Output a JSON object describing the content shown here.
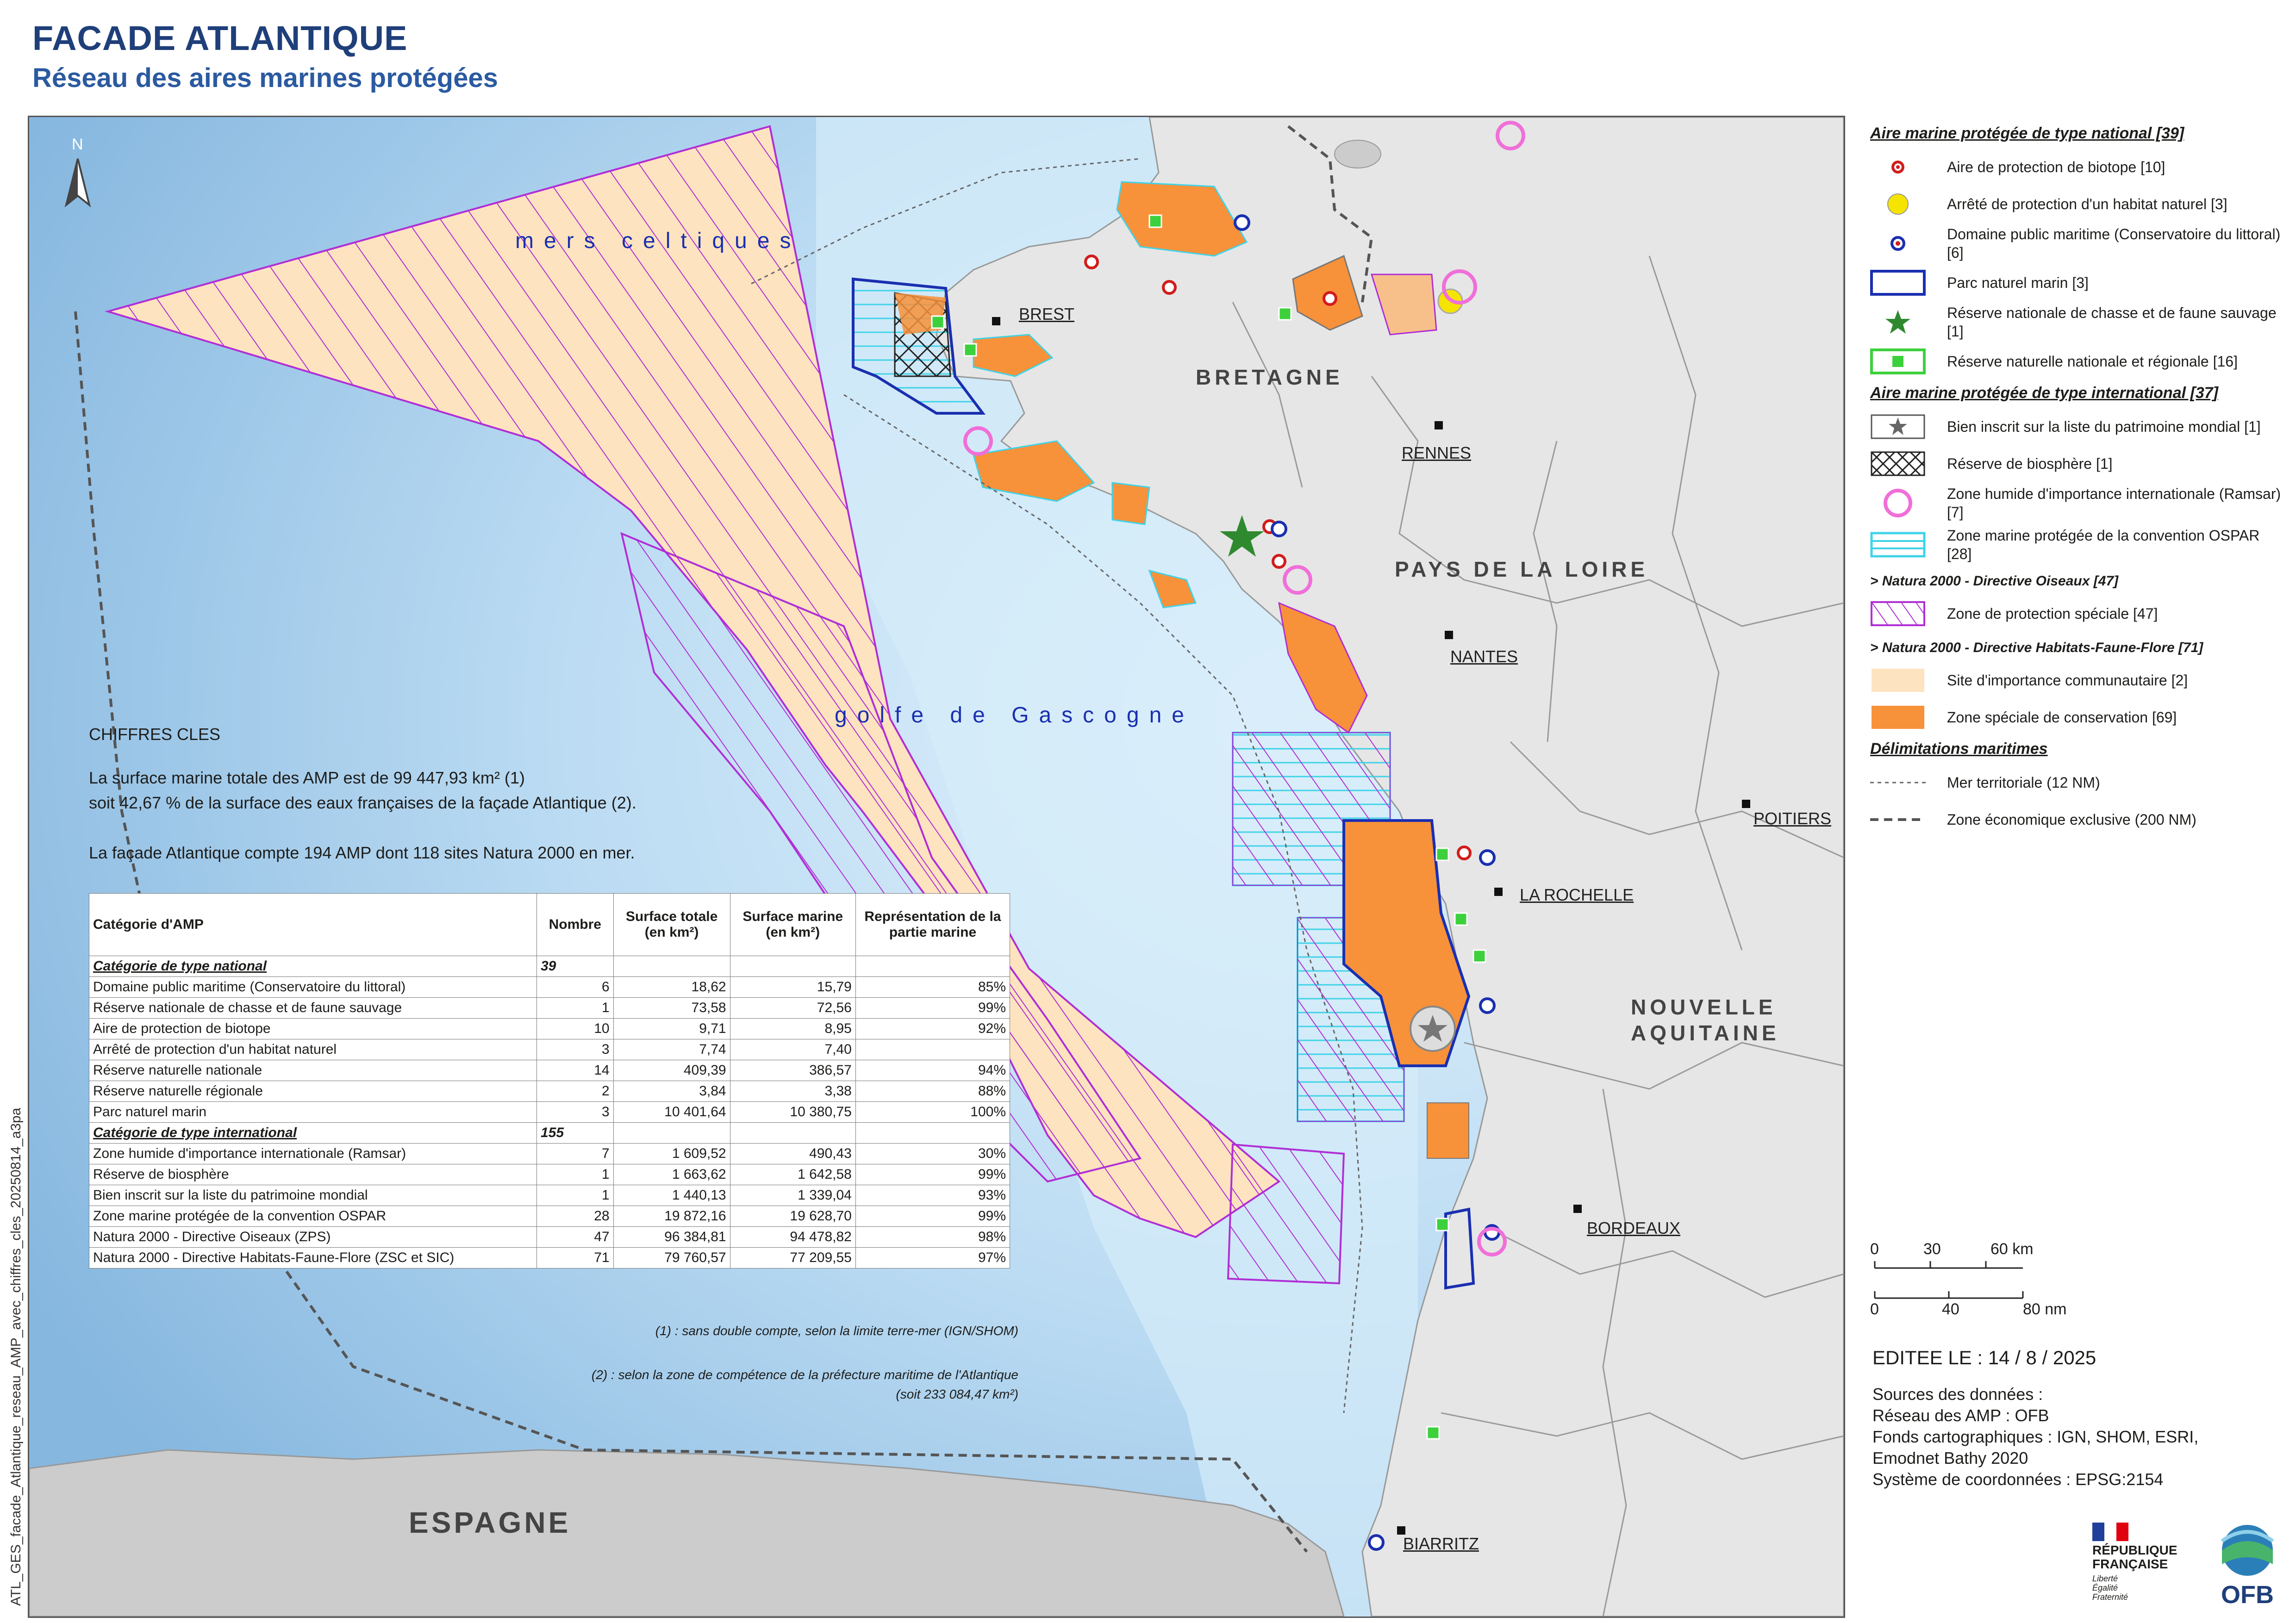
{
  "title": "FACADE ATLANTIQUE",
  "subtitle": "Réseau des aires marines protégées",
  "file_code": "ATL_GES_facade_Atlantique_reseau_AMP_avec_chiffres_cles_20250814_a3pa",
  "map": {
    "north_symbol": "N",
    "regions": [
      "BRETAGNE",
      "PAYS DE LA LOIRE",
      "NOUVELLE AQUITAINE"
    ],
    "cities": [
      "BREST",
      "RENNES",
      "NANTES",
      "LA ROCHELLE",
      "POITIERS",
      "BORDEAUX",
      "BIARRITZ"
    ],
    "seas": [
      "mers celtiques",
      "golfe de Gascogne"
    ],
    "country": "ESPAGNE"
  },
  "key_figures": {
    "title": "CHIFFRES CLES",
    "line1": "La surface marine totale des AMP est de 99 447,93 km² (1)",
    "line2": "soit 42,67 % de la surface des eaux françaises de la façade Atlantique (2).",
    "line3": "La façade Atlantique compte 194 AMP dont 118 sites Natura 2000 en mer."
  },
  "table": {
    "headers": [
      "Catégorie d'AMP",
      "Nombre",
      "Surface totale (en km²)",
      "Surface marine (en km²)",
      "Représentation de la partie marine"
    ],
    "groups": [
      {
        "name": "Catégorie de type national",
        "count": "39",
        "rows": [
          [
            "Domaine public maritime (Conservatoire du littoral)",
            "6",
            "18,62",
            "15,79",
            "85%"
          ],
          [
            "Réserve nationale de chasse et de faune sauvage",
            "1",
            "73,58",
            "72,56",
            "99%"
          ],
          [
            "Aire de protection de biotope",
            "10",
            "9,71",
            "8,95",
            "92%"
          ],
          [
            "Arrêté de protection d'un habitat naturel",
            "3",
            "7,74",
            "7,40",
            ""
          ],
          [
            "Réserve naturelle nationale",
            "14",
            "409,39",
            "386,57",
            "94%"
          ],
          [
            "Réserve naturelle régionale",
            "2",
            "3,84",
            "3,38",
            "88%"
          ],
          [
            "Parc naturel marin",
            "3",
            "10 401,64",
            "10 380,75",
            "100%"
          ]
        ]
      },
      {
        "name": "Catégorie de type international",
        "count": "155",
        "rows": [
          [
            "Zone humide d'importance internationale (Ramsar)",
            "7",
            "1 609,52",
            "490,43",
            "30%"
          ],
          [
            "Réserve de biosphère",
            "1",
            "1 663,62",
            "1 642,58",
            "99%"
          ],
          [
            "Bien inscrit sur la liste du patrimoine mondial",
            "1",
            "1 440,13",
            "1 339,04",
            "93%"
          ],
          [
            "Zone marine protégée de la convention OSPAR",
            "28",
            "19 872,16",
            "19 628,70",
            "99%"
          ],
          [
            "Natura 2000 - Directive Oiseaux (ZPS)",
            "47",
            "96 384,81",
            "94 478,82",
            "98%"
          ],
          [
            "Natura 2000 - Directive Habitats-Faune-Flore (ZSC et SIC)",
            "71",
            "79 760,57",
            "77 209,55",
            "97%"
          ]
        ]
      }
    ],
    "footnote1": "(1) : sans double compte, selon la limite terre-mer (IGN/SHOM)",
    "footnote2a": "(2) : selon la zone de compétence de la préfecture maritime de l'Atlantique",
    "footnote2b": "(soit 233 084,47 km²)"
  },
  "legend": {
    "national_title": "Aire marine protégée de type national [39]",
    "national": [
      "Aire de protection de biotope [10]",
      "Arrêté de protection d'un habitat naturel [3]",
      "Domaine public maritime (Conservatoire du littoral) [6]",
      "Parc naturel marin [3]",
      "Réserve nationale de chasse et de faune sauvage [1]",
      "Réserve naturelle nationale et régionale [16]"
    ],
    "international_title": "Aire marine protégée de type international [37]",
    "international": [
      "Bien inscrit sur la liste du patrimoine mondial [1]",
      "Réserve de biosphère [1]",
      "Zone humide d'importance internationale (Ramsar) [7]",
      "Zone marine protégée de la convention OSPAR [28]"
    ],
    "n2000_oiseaux_title": "> Natura 2000 - Directive Oiseaux [47]",
    "n2000_oiseaux": "Zone de protection spéciale [47]",
    "n2000_habitats_title": "> Natura 2000 - Directive Habitats-Faune-Flore [71]",
    "n2000_habitats": [
      "Site d'importance communautaire [2]",
      "Zone spéciale de conservation [69]"
    ],
    "delim_title": "Délimitations maritimes",
    "delim": [
      "Mer territoriale (12 NM)",
      "Zone économique exclusive (200 NM)"
    ]
  },
  "scale": {
    "km_ticks": [
      "0",
      "30",
      "60 km"
    ],
    "nm_ticks": [
      "0",
      "40",
      "80 nm"
    ]
  },
  "edit_date": "EDITEE LE : 14 / 8 / 2025",
  "sources": [
    "Sources des données :",
    "Réseau des AMP : OFB",
    "Fonds cartographiques : IGN, SHOM, ESRI,",
    "Emodnet Bathy 2020",
    "Système de coordonnées : EPSG:2154"
  ],
  "logos": {
    "rf": [
      "RÉPUBLIQUE",
      "FRANÇAISE"
    ],
    "rf_motto": "Liberté Égalité Fraternité",
    "ofb": "OFB"
  },
  "colors": {
    "title": "#1f3f7a",
    "zsc_orange": "#f7913a",
    "sic_beige": "#fde3bf",
    "zps_purple": "#b02fd6",
    "ospar_cyan": "#3fd3e8",
    "pnm_blue": "#1a2fb0",
    "rn_green": "#3cd13c",
    "land_grey": "#e6e6e6"
  }
}
